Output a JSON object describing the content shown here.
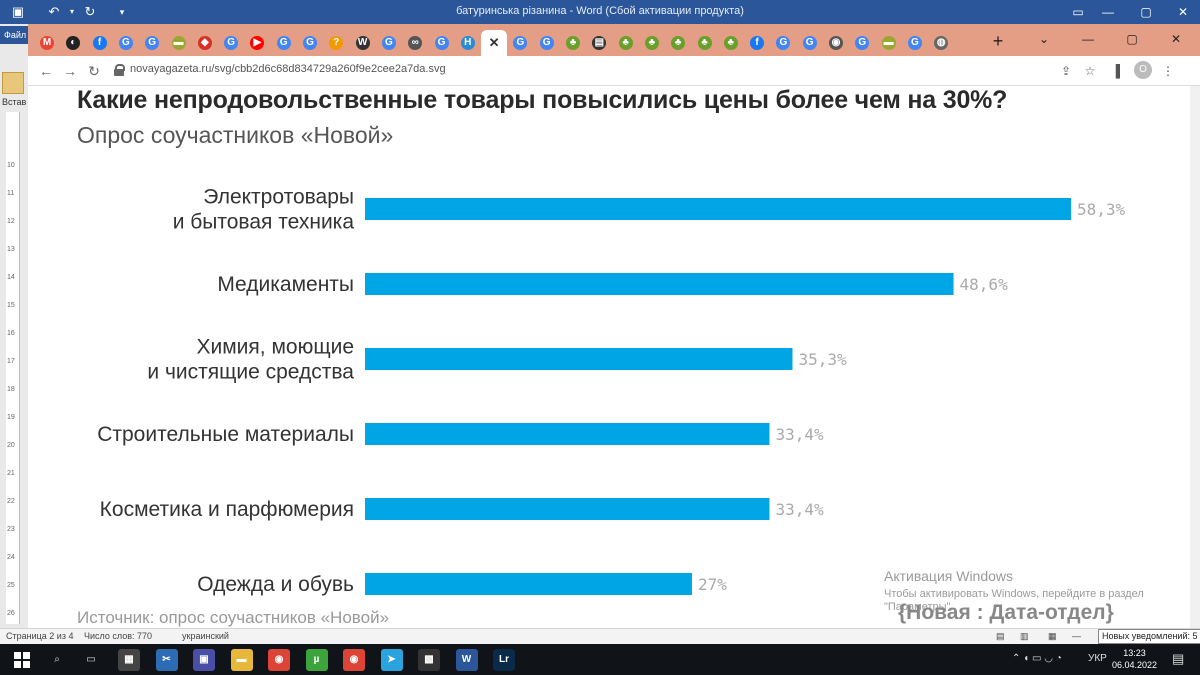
{
  "word": {
    "title": "батуринська різанина - Word (Сбой активации продукта)",
    "file_tab": "Файл",
    "ribbon_label": "Встав",
    "ruler_numbers": [
      "10",
      "11",
      "12",
      "13",
      "14",
      "15",
      "16",
      "17",
      "18",
      "19",
      "20",
      "21",
      "22",
      "23",
      "24",
      "25",
      "26"
    ],
    "status": {
      "page": "Страница 2 из 4",
      "words": "Число слов: 770",
      "language": "украинский"
    },
    "notifications": "Новых уведомлений: 5"
  },
  "browser": {
    "url": "novayagazeta.ru/svg/cbb2d6c68d834729a260f9e2cee2a7da.svg",
    "profile_initial": "O",
    "tabs": [
      {
        "icon": "gmail-icon",
        "glyph": "M",
        "color": "#ea4335"
      },
      {
        "icon": "site-icon",
        "glyph": "◐",
        "color": "#222222"
      },
      {
        "icon": "facebook-icon",
        "glyph": "f",
        "color": "#1877f2"
      },
      {
        "icon": "google-icon",
        "glyph": "G",
        "color": "#4285f4"
      },
      {
        "icon": "google-icon",
        "glyph": "G",
        "color": "#4285f4"
      },
      {
        "icon": "site-icon",
        "glyph": "▬",
        "color": "#9aa832"
      },
      {
        "icon": "site-icon",
        "glyph": "◆",
        "color": "#d93025"
      },
      {
        "icon": "google-icon",
        "glyph": "G",
        "color": "#4285f4"
      },
      {
        "icon": "youtube-icon",
        "glyph": "▶",
        "color": "#ff0000"
      },
      {
        "icon": "google-icon",
        "glyph": "G",
        "color": "#4285f4"
      },
      {
        "icon": "google-icon",
        "glyph": "G",
        "color": "#4285f4"
      },
      {
        "icon": "site-icon",
        "glyph": "?",
        "color": "#f29900"
      },
      {
        "icon": "wikipedia-icon",
        "glyph": "W",
        "color": "#333333"
      },
      {
        "icon": "google-icon",
        "glyph": "G",
        "color": "#4285f4"
      },
      {
        "icon": "site-icon",
        "glyph": "∞",
        "color": "#555555"
      },
      {
        "icon": "google-icon",
        "glyph": "G",
        "color": "#4285f4"
      },
      {
        "icon": "site-icon",
        "glyph": "H",
        "color": "#2a8bd6"
      },
      {
        "icon": "close-icon",
        "glyph": "✕",
        "color": "#333333",
        "active": true
      },
      {
        "icon": "google-icon",
        "glyph": "G",
        "color": "#4285f4"
      },
      {
        "icon": "google-icon",
        "glyph": "G",
        "color": "#4285f4"
      },
      {
        "icon": "tree-icon",
        "glyph": "♣",
        "color": "#6a9f2b"
      },
      {
        "icon": "site-icon",
        "glyph": "▤",
        "color": "#333333"
      },
      {
        "icon": "tree-icon",
        "glyph": "♣",
        "color": "#6a9f2b"
      },
      {
        "icon": "tree-icon",
        "glyph": "♣",
        "color": "#6a9f2b"
      },
      {
        "icon": "tree-icon",
        "glyph": "♣",
        "color": "#6a9f2b"
      },
      {
        "icon": "tree-icon",
        "glyph": "♣",
        "color": "#6a9f2b"
      },
      {
        "icon": "tree-icon",
        "glyph": "♣",
        "color": "#6a9f2b"
      },
      {
        "icon": "facebook-icon",
        "glyph": "f",
        "color": "#1877f2"
      },
      {
        "icon": "google-icon",
        "glyph": "G",
        "color": "#4285f4"
      },
      {
        "icon": "google-icon",
        "glyph": "G",
        "color": "#4285f4"
      },
      {
        "icon": "chrome-icon",
        "glyph": "◉",
        "color": "#555555"
      },
      {
        "icon": "google-icon",
        "glyph": "G",
        "color": "#4285f4"
      },
      {
        "icon": "site-icon",
        "glyph": "▬",
        "color": "#9aa832"
      },
      {
        "icon": "google-icon",
        "glyph": "G",
        "color": "#4285f4"
      },
      {
        "icon": "globe-icon",
        "glyph": "◍",
        "color": "#666666"
      }
    ]
  },
  "chart_data": {
    "type": "bar",
    "orientation": "horizontal",
    "title": "Какие непродовольственные товары повысились цены более чем на 30%?",
    "subtitle": "Опрос соучастников «Новой»",
    "categories": [
      [
        "Электротовары",
        "и бытовая техника"
      ],
      [
        "Медикаменты"
      ],
      [
        "Химия, моющие",
        "и чистящие средства"
      ],
      [
        "Строительные материалы"
      ],
      [
        "Косметика и парфюмерия"
      ],
      [
        "Одежда и обувь"
      ]
    ],
    "values": [
      58.3,
      48.6,
      35.3,
      33.4,
      33.4,
      27
    ],
    "value_labels": [
      "58,3%",
      "48,6%",
      "35,3%",
      "33,4%",
      "33,4%",
      "27%"
    ],
    "unit": "%",
    "xlim": [
      0,
      58.3
    ],
    "bar_color": "#00a5e6",
    "grid": false,
    "source": "Источник: опрос соучастников «Новой»",
    "brand": "{Новая : Дата-отдел}"
  },
  "activation": {
    "line1": "Активация Windows",
    "line2": "Чтобы активировать Windows, перейдите в раздел",
    "line3": "\"Параметры\"."
  },
  "taskbar": {
    "tray": "УКР",
    "time": "13:23",
    "date": "06.04.2022",
    "apps": [
      {
        "name": "calculator-icon",
        "glyph": "▦",
        "color": "#444444"
      },
      {
        "name": "snip-icon",
        "glyph": "✂",
        "color": "#2d6bb5"
      },
      {
        "name": "save-icon",
        "glyph": "▣",
        "color": "#4a4fa6"
      },
      {
        "name": "folder-icon",
        "glyph": "▬",
        "color": "#e8b83a"
      },
      {
        "name": "chrome-icon",
        "glyph": "◉",
        "color": "#db4437"
      },
      {
        "name": "torrent-icon",
        "glyph": "µ",
        "color": "#3da33d"
      },
      {
        "name": "chrome-icon",
        "glyph": "◉",
        "color": "#db4437"
      },
      {
        "name": "telegram-icon",
        "glyph": "➤",
        "color": "#2aa3de"
      },
      {
        "name": "clapper-icon",
        "glyph": "▩",
        "color": "#333333"
      },
      {
        "name": "word-icon",
        "glyph": "W",
        "color": "#2b579a"
      },
      {
        "name": "lightroom-icon",
        "glyph": "Lr",
        "color": "#0a2a4a"
      }
    ]
  }
}
